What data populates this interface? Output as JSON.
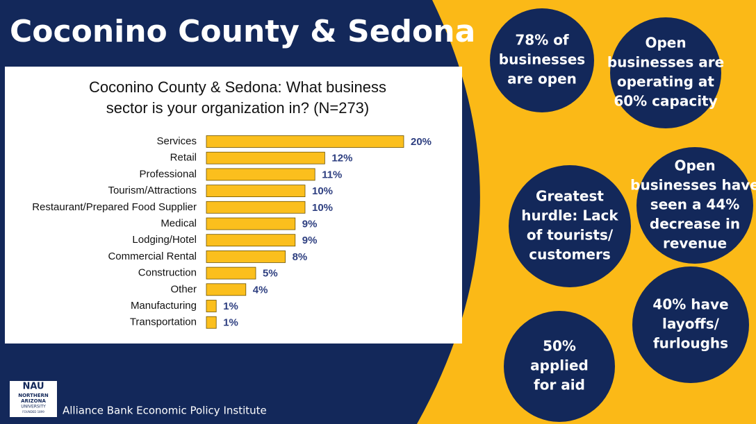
{
  "slide_title": "Coconino County & Sedona",
  "chart_data": {
    "type": "bar",
    "orientation": "horizontal",
    "title": [
      "Coconino County & Sedona: What business",
      "sector is your organization in? (N=273)"
    ],
    "categories": [
      "Services",
      "Retail",
      "Professional",
      "Tourism/Attractions",
      "Restaurant/Prepared Food Supplier",
      "Medical",
      "Lodging/Hotel",
      "Commercial Rental",
      "Construction",
      "Other",
      "Manufacturing",
      "Transportation"
    ],
    "values": [
      20,
      12,
      11,
      10,
      10,
      9,
      9,
      8,
      5,
      4,
      1,
      1
    ],
    "value_labels": [
      "20%",
      "12%",
      "11%",
      "10%",
      "10%",
      "9%",
      "9%",
      "8%",
      "5%",
      "4%",
      "1%",
      "1%"
    ],
    "color": "#fbbf1d"
  },
  "circles": [
    [
      "78% of",
      "businesses",
      "are open"
    ],
    [
      "Open",
      "businesses are",
      "operating at",
      "60% capacity"
    ],
    [
      "Greatest",
      "hurdle: Lack",
      "of tourists/",
      "customers"
    ],
    [
      "Open",
      "businesses have",
      "seen a  44%",
      "decrease in",
      "revenue"
    ],
    [
      "40% have",
      "layoffs/",
      "furloughs"
    ],
    [
      "50%",
      "applied",
      "for aid"
    ]
  ],
  "logo": [
    "NAU",
    "NORTHERN",
    "ARIZONA",
    "UNIVERSITY",
    "FOUNDED 1899"
  ],
  "footer": "Alliance Bank Economic Policy Institute"
}
